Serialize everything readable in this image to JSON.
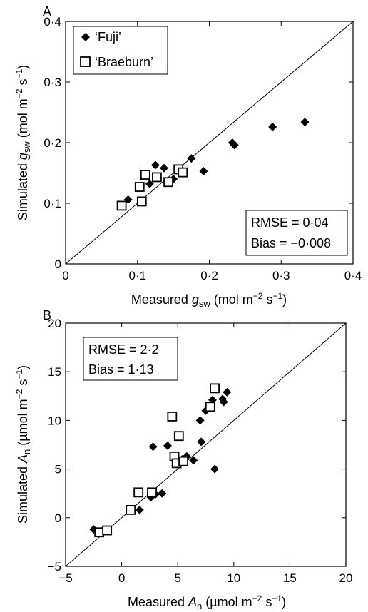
{
  "colors": {
    "fuji": "#000000",
    "braeburn_stroke": "#000000",
    "braeburn_fill": "#ffffff"
  },
  "chart_data": [
    {
      "type": "scatter",
      "panel": "A",
      "xlabel": {
        "prefix": "Measured ",
        "var": "g",
        "sub": "sw",
        "unit_pre": " (mol m",
        "sup1": "−2",
        "unit_mid": " s",
        "sup2": "−1",
        "unit_post": ")"
      },
      "ylabel": {
        "prefix": "Simulated ",
        "var": "g",
        "sub": "sw",
        "unit_pre": " (mol m",
        "sup1": "−2",
        "unit_mid": " s",
        "sup2": "−1",
        "unit_post": ")"
      },
      "xlim": [
        0,
        0.4
      ],
      "ylim": [
        0,
        0.4
      ],
      "ticks": [
        0,
        0.1,
        0.2,
        0.3,
        0.4
      ],
      "tick_labels": [
        "0",
        "0·1",
        "0·2",
        "0·3",
        "0·4"
      ],
      "legend": [
        "‘Fuji’",
        "‘Braeburn’"
      ],
      "legend_placement": "top-left",
      "stats": {
        "rmse": "RMSE = 0·04",
        "bias": "Bias = −0·008"
      },
      "stats_placement": "bottom-right",
      "one_to_one_line": true,
      "series": [
        {
          "name": "‘Fuji’",
          "marker": "diamond-filled",
          "points": [
            [
              0.087,
              0.106
            ],
            [
              0.117,
              0.132
            ],
            [
              0.125,
              0.163
            ],
            [
              0.137,
              0.158
            ],
            [
              0.15,
              0.14
            ],
            [
              0.175,
              0.174
            ],
            [
              0.192,
              0.153
            ],
            [
              0.232,
              0.2
            ],
            [
              0.235,
              0.196
            ],
            [
              0.288,
              0.226
            ],
            [
              0.333,
              0.234
            ]
          ]
        },
        {
          "name": "‘Braeburn’",
          "marker": "square-open",
          "points": [
            [
              0.078,
              0.096
            ],
            [
              0.103,
              0.127
            ],
            [
              0.106,
              0.103
            ],
            [
              0.111,
              0.147
            ],
            [
              0.127,
              0.143
            ],
            [
              0.143,
              0.135
            ],
            [
              0.157,
              0.156
            ],
            [
              0.163,
              0.151
            ]
          ]
        }
      ]
    },
    {
      "type": "scatter",
      "panel": "B",
      "xlabel": {
        "prefix": "Measured ",
        "var": "A",
        "sub": "n",
        "unit_pre": " (µmol m",
        "sup1": "−2",
        "unit_mid": " s",
        "sup2": "−1",
        "unit_post": ")"
      },
      "ylabel": {
        "prefix": "Simulated ",
        "var": "A",
        "sub": "n",
        "unit_pre": " (µmol m",
        "sup1": "−2",
        "unit_mid": " s",
        "sup2": "−1",
        "unit_post": ")"
      },
      "xlim": [
        -5,
        20
      ],
      "ylim": [
        -5,
        20
      ],
      "ticks": [
        -5,
        0,
        5,
        10,
        15,
        20
      ],
      "tick_labels": [
        "−5",
        "0",
        "5",
        "10",
        "15",
        "20"
      ],
      "stats": {
        "rmse": "RMSE = 2·2",
        "bias": "Bias = 1·13"
      },
      "stats_placement": "top-left",
      "one_to_one_line": true,
      "series": [
        {
          "name": "‘Fuji’",
          "marker": "diamond-filled",
          "points": [
            [
              -2.5,
              -1.2
            ],
            [
              -1.8,
              -1.4
            ],
            [
              1.0,
              0.8
            ],
            [
              1.6,
              0.8
            ],
            [
              2.6,
              2.1
            ],
            [
              2.8,
              7.3
            ],
            [
              3.0,
              2.4
            ],
            [
              3.6,
              2.5
            ],
            [
              4.1,
              7.4
            ],
            [
              5.4,
              6.0
            ],
            [
              5.8,
              6.3
            ],
            [
              6.4,
              5.9
            ],
            [
              7.0,
              10.0
            ],
            [
              7.1,
              7.8
            ],
            [
              7.5,
              11.0
            ],
            [
              7.8,
              11.4
            ],
            [
              8.1,
              12.1
            ],
            [
              8.3,
              5.0
            ],
            [
              9.0,
              12.2
            ],
            [
              9.1,
              11.9
            ],
            [
              9.4,
              12.9
            ]
          ]
        },
        {
          "name": "‘Braeburn’",
          "marker": "square-open",
          "points": [
            [
              -2.0,
              -1.5
            ],
            [
              -1.3,
              -1.3
            ],
            [
              0.8,
              0.8
            ],
            [
              1.5,
              2.6
            ],
            [
              2.7,
              2.6
            ],
            [
              4.5,
              10.4
            ],
            [
              4.7,
              6.3
            ],
            [
              4.9,
              5.6
            ],
            [
              5.1,
              8.4
            ],
            [
              5.5,
              5.8
            ],
            [
              7.9,
              11.4
            ],
            [
              8.3,
              13.3
            ]
          ]
        }
      ]
    }
  ]
}
